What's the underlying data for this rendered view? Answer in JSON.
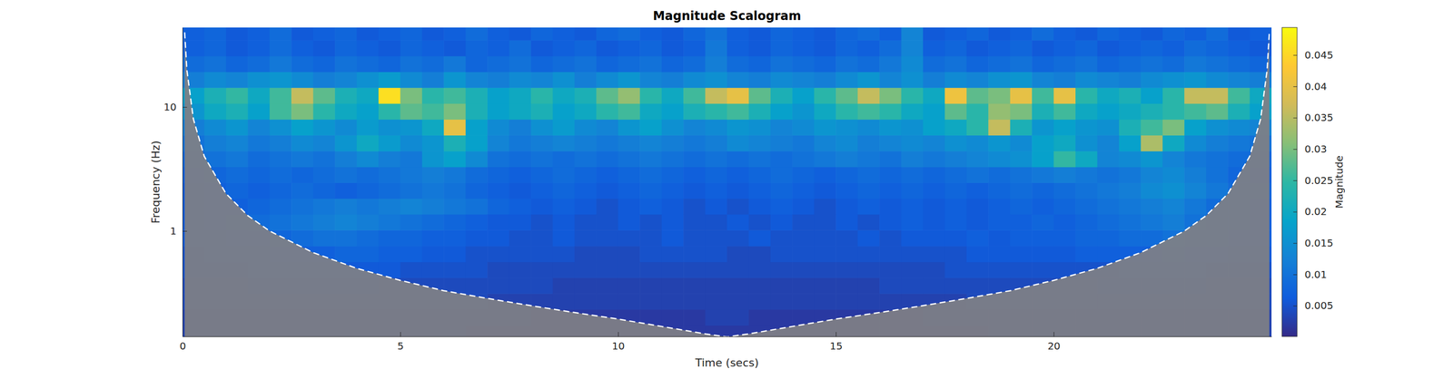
{
  "chart_data": {
    "type": "heatmap",
    "title": "Magnitude Scalogram",
    "xlabel": "Time (secs)",
    "ylabel": "Frequency (Hz)",
    "log": "y",
    "xlim": [
      0,
      25
    ],
    "ylim": [
      0.141,
      43.8
    ],
    "xticks": [
      0,
      5,
      10,
      15,
      20
    ],
    "yticks": [
      1,
      10
    ],
    "x": [
      0.25,
      0.75,
      1.25,
      1.75,
      2.25,
      2.75,
      3.25,
      3.75,
      4.25,
      4.75,
      5.25,
      5.75,
      6.25,
      6.75,
      7.25,
      7.75,
      8.25,
      8.75,
      9.25,
      9.75,
      10.25,
      10.75,
      11.25,
      11.75,
      12.25,
      12.75,
      13.25,
      13.75,
      14.25,
      14.75,
      15.25,
      15.75,
      16.25,
      16.75,
      17.25,
      17.75,
      18.25,
      18.75,
      19.25,
      19.75,
      20.25,
      20.75,
      21.25,
      21.75,
      22.25,
      22.75,
      23.25,
      23.75,
      24.25,
      24.75
    ],
    "y": [
      0.15,
      0.201,
      0.27,
      0.363,
      0.487,
      0.653,
      0.877,
      1.18,
      1.58,
      2.12,
      2.84,
      3.81,
      5.12,
      6.87,
      9.21,
      12.4,
      16.6,
      22.3,
      29.9,
      40.1
    ],
    "z": [
      [
        0.003,
        0.003,
        0.003,
        0.003,
        0.003,
        0.003,
        0.003,
        0.003,
        0.003,
        0.003,
        0.003,
        0.003,
        0.003,
        0.002,
        0.002,
        0.002,
        0.002,
        0.002,
        0.002,
        0.002,
        0.002,
        0.002,
        0.002,
        0.002,
        0.002,
        0.002,
        0.002,
        0.002,
        0.002,
        0.002,
        0.002,
        0.002,
        0.002,
        0.002,
        0.002,
        0.002,
        0.002,
        0.003,
        0.003,
        0.003,
        0.003,
        0.003,
        0.003,
        0.003,
        0.003,
        0.003,
        0.003,
        0.003,
        0.003,
        0.003
      ],
      [
        0.003,
        0.003,
        0.003,
        0.003,
        0.003,
        0.003,
        0.003,
        0.003,
        0.003,
        0.003,
        0.003,
        0.003,
        0.003,
        0.003,
        0.003,
        0.003,
        0.002,
        0.002,
        0.002,
        0.002,
        0.002,
        0.002,
        0.002,
        0.002,
        0.003,
        0.003,
        0.002,
        0.002,
        0.002,
        0.002,
        0.002,
        0.002,
        0.002,
        0.002,
        0.003,
        0.003,
        0.003,
        0.003,
        0.003,
        0.003,
        0.003,
        0.003,
        0.003,
        0.003,
        0.003,
        0.003,
        0.003,
        0.003,
        0.003,
        0.003
      ],
      [
        0.004,
        0.004,
        0.004,
        0.004,
        0.004,
        0.004,
        0.004,
        0.004,
        0.004,
        0.004,
        0.004,
        0.004,
        0.004,
        0.004,
        0.003,
        0.003,
        0.003,
        0.003,
        0.003,
        0.003,
        0.003,
        0.003,
        0.003,
        0.003,
        0.003,
        0.003,
        0.003,
        0.003,
        0.003,
        0.003,
        0.003,
        0.003,
        0.003,
        0.003,
        0.003,
        0.003,
        0.004,
        0.004,
        0.004,
        0.004,
        0.004,
        0.004,
        0.004,
        0.004,
        0.004,
        0.004,
        0.004,
        0.004,
        0.004,
        0.004
      ],
      [
        0.004,
        0.004,
        0.004,
        0.005,
        0.005,
        0.005,
        0.005,
        0.005,
        0.005,
        0.004,
        0.004,
        0.004,
        0.004,
        0.004,
        0.004,
        0.004,
        0.004,
        0.003,
        0.003,
        0.003,
        0.003,
        0.003,
        0.003,
        0.003,
        0.003,
        0.003,
        0.003,
        0.003,
        0.003,
        0.003,
        0.003,
        0.003,
        0.004,
        0.004,
        0.004,
        0.004,
        0.004,
        0.004,
        0.004,
        0.004,
        0.004,
        0.004,
        0.005,
        0.005,
        0.005,
        0.005,
        0.005,
        0.004,
        0.004,
        0.004
      ],
      [
        0.005,
        0.005,
        0.005,
        0.006,
        0.006,
        0.006,
        0.006,
        0.006,
        0.006,
        0.006,
        0.005,
        0.005,
        0.005,
        0.005,
        0.004,
        0.004,
        0.004,
        0.004,
        0.004,
        0.004,
        0.004,
        0.004,
        0.004,
        0.004,
        0.004,
        0.004,
        0.004,
        0.004,
        0.004,
        0.004,
        0.004,
        0.004,
        0.004,
        0.004,
        0.004,
        0.005,
        0.005,
        0.005,
        0.005,
        0.005,
        0.005,
        0.005,
        0.005,
        0.006,
        0.006,
        0.006,
        0.006,
        0.005,
        0.005,
        0.005
      ],
      [
        0.005,
        0.006,
        0.006,
        0.006,
        0.007,
        0.007,
        0.007,
        0.008,
        0.008,
        0.007,
        0.007,
        0.006,
        0.006,
        0.005,
        0.005,
        0.005,
        0.005,
        0.005,
        0.004,
        0.004,
        0.004,
        0.005,
        0.005,
        0.005,
        0.005,
        0.004,
        0.004,
        0.005,
        0.005,
        0.005,
        0.005,
        0.005,
        0.005,
        0.005,
        0.005,
        0.005,
        0.006,
        0.006,
        0.006,
        0.006,
        0.006,
        0.007,
        0.007,
        0.007,
        0.007,
        0.008,
        0.007,
        0.007,
        0.006,
        0.006
      ],
      [
        0.006,
        0.006,
        0.007,
        0.007,
        0.008,
        0.009,
        0.01,
        0.01,
        0.009,
        0.008,
        0.008,
        0.007,
        0.007,
        0.006,
        0.006,
        0.005,
        0.005,
        0.006,
        0.005,
        0.005,
        0.005,
        0.005,
        0.006,
        0.005,
        0.005,
        0.005,
        0.006,
        0.005,
        0.005,
        0.005,
        0.005,
        0.006,
        0.005,
        0.006,
        0.006,
        0.006,
        0.007,
        0.006,
        0.007,
        0.007,
        0.007,
        0.008,
        0.008,
        0.009,
        0.009,
        0.01,
        0.009,
        0.008,
        0.007,
        0.007
      ],
      [
        0.006,
        0.007,
        0.008,
        0.009,
        0.01,
        0.011,
        0.012,
        0.013,
        0.012,
        0.011,
        0.01,
        0.009,
        0.008,
        0.007,
        0.006,
        0.006,
        0.005,
        0.006,
        0.005,
        0.005,
        0.006,
        0.005,
        0.006,
        0.005,
        0.005,
        0.006,
        0.005,
        0.006,
        0.005,
        0.005,
        0.006,
        0.005,
        0.006,
        0.007,
        0.006,
        0.007,
        0.006,
        0.007,
        0.007,
        0.008,
        0.007,
        0.008,
        0.009,
        0.01,
        0.011,
        0.012,
        0.01,
        0.009,
        0.008,
        0.007
      ],
      [
        0.006,
        0.007,
        0.007,
        0.008,
        0.009,
        0.01,
        0.011,
        0.012,
        0.011,
        0.012,
        0.013,
        0.012,
        0.011,
        0.01,
        0.008,
        0.007,
        0.006,
        0.007,
        0.006,
        0.005,
        0.006,
        0.007,
        0.006,
        0.005,
        0.006,
        0.005,
        0.006,
        0.007,
        0.006,
        0.005,
        0.006,
        0.007,
        0.006,
        0.007,
        0.006,
        0.007,
        0.006,
        0.007,
        0.008,
        0.007,
        0.008,
        0.009,
        0.01,
        0.011,
        0.012,
        0.013,
        0.011,
        0.009,
        0.008,
        0.007
      ],
      [
        0.006,
        0.007,
        0.008,
        0.007,
        0.008,
        0.009,
        0.008,
        0.007,
        0.008,
        0.009,
        0.01,
        0.011,
        0.01,
        0.008,
        0.007,
        0.006,
        0.007,
        0.008,
        0.007,
        0.006,
        0.007,
        0.008,
        0.007,
        0.006,
        0.007,
        0.006,
        0.007,
        0.008,
        0.007,
        0.006,
        0.007,
        0.008,
        0.007,
        0.008,
        0.007,
        0.008,
        0.007,
        0.008,
        0.009,
        0.008,
        0.009,
        0.01,
        0.011,
        0.012,
        0.014,
        0.015,
        0.013,
        0.011,
        0.009,
        0.008
      ],
      [
        0.007,
        0.008,
        0.009,
        0.008,
        0.009,
        0.008,
        0.009,
        0.01,
        0.009,
        0.01,
        0.011,
        0.012,
        0.011,
        0.009,
        0.008,
        0.007,
        0.008,
        0.009,
        0.008,
        0.007,
        0.008,
        0.009,
        0.008,
        0.007,
        0.008,
        0.007,
        0.008,
        0.009,
        0.008,
        0.007,
        0.008,
        0.009,
        0.008,
        0.009,
        0.008,
        0.009,
        0.01,
        0.009,
        0.01,
        0.011,
        0.012,
        0.011,
        0.01,
        0.011,
        0.013,
        0.014,
        0.012,
        0.01,
        0.008,
        0.007
      ],
      [
        0.008,
        0.01,
        0.011,
        0.009,
        0.01,
        0.011,
        0.01,
        0.012,
        0.014,
        0.012,
        0.011,
        0.016,
        0.018,
        0.014,
        0.01,
        0.009,
        0.01,
        0.009,
        0.01,
        0.009,
        0.01,
        0.011,
        0.01,
        0.009,
        0.01,
        0.009,
        0.01,
        0.009,
        0.01,
        0.011,
        0.012,
        0.011,
        0.01,
        0.012,
        0.011,
        0.012,
        0.013,
        0.014,
        0.015,
        0.018,
        0.025,
        0.02,
        0.013,
        0.014,
        0.016,
        0.013,
        0.011,
        0.01,
        0.009,
        0.008
      ],
      [
        0.01,
        0.012,
        0.013,
        0.011,
        0.012,
        0.014,
        0.013,
        0.016,
        0.02,
        0.017,
        0.014,
        0.016,
        0.022,
        0.018,
        0.013,
        0.011,
        0.012,
        0.013,
        0.012,
        0.011,
        0.012,
        0.013,
        0.012,
        0.011,
        0.012,
        0.014,
        0.013,
        0.012,
        0.011,
        0.013,
        0.014,
        0.012,
        0.013,
        0.014,
        0.013,
        0.015,
        0.014,
        0.016,
        0.014,
        0.018,
        0.02,
        0.015,
        0.013,
        0.018,
        0.034,
        0.02,
        0.014,
        0.012,
        0.011,
        0.01
      ],
      [
        0.012,
        0.014,
        0.016,
        0.013,
        0.015,
        0.018,
        0.016,
        0.014,
        0.017,
        0.015,
        0.016,
        0.02,
        0.04,
        0.018,
        0.014,
        0.012,
        0.015,
        0.017,
        0.014,
        0.013,
        0.016,
        0.018,
        0.015,
        0.013,
        0.014,
        0.016,
        0.015,
        0.013,
        0.014,
        0.016,
        0.015,
        0.014,
        0.016,
        0.015,
        0.018,
        0.02,
        0.024,
        0.036,
        0.022,
        0.016,
        0.018,
        0.016,
        0.015,
        0.022,
        0.026,
        0.03,
        0.018,
        0.015,
        0.014,
        0.013
      ],
      [
        0.016,
        0.02,
        0.022,
        0.018,
        0.026,
        0.03,
        0.024,
        0.02,
        0.018,
        0.024,
        0.028,
        0.026,
        0.03,
        0.022,
        0.018,
        0.02,
        0.022,
        0.018,
        0.02,
        0.024,
        0.026,
        0.02,
        0.018,
        0.022,
        0.024,
        0.026,
        0.022,
        0.018,
        0.016,
        0.02,
        0.024,
        0.026,
        0.024,
        0.02,
        0.018,
        0.028,
        0.024,
        0.032,
        0.03,
        0.022,
        0.026,
        0.02,
        0.018,
        0.02,
        0.022,
        0.024,
        0.026,
        0.028,
        0.022,
        0.018
      ],
      [
        0.018,
        0.022,
        0.025,
        0.02,
        0.026,
        0.036,
        0.028,
        0.022,
        0.02,
        0.046,
        0.03,
        0.024,
        0.026,
        0.022,
        0.018,
        0.02,
        0.024,
        0.02,
        0.022,
        0.028,
        0.032,
        0.024,
        0.02,
        0.026,
        0.036,
        0.04,
        0.028,
        0.022,
        0.018,
        0.024,
        0.028,
        0.036,
        0.03,
        0.024,
        0.02,
        0.041,
        0.028,
        0.03,
        0.04,
        0.026,
        0.04,
        0.024,
        0.02,
        0.022,
        0.018,
        0.024,
        0.036,
        0.036,
        0.026,
        0.02
      ],
      [
        0.012,
        0.014,
        0.013,
        0.015,
        0.016,
        0.014,
        0.012,
        0.013,
        0.015,
        0.017,
        0.014,
        0.012,
        0.016,
        0.013,
        0.012,
        0.014,
        0.013,
        0.015,
        0.012,
        0.014,
        0.016,
        0.013,
        0.012,
        0.014,
        0.015,
        0.013,
        0.012,
        0.014,
        0.013,
        0.012,
        0.014,
        0.016,
        0.013,
        0.015,
        0.012,
        0.014,
        0.013,
        0.015,
        0.016,
        0.013,
        0.012,
        0.014,
        0.013,
        0.012,
        0.014,
        0.015,
        0.016,
        0.014,
        0.013,
        0.012
      ],
      [
        0.009,
        0.01,
        0.008,
        0.009,
        0.011,
        0.009,
        0.008,
        0.01,
        0.009,
        0.008,
        0.01,
        0.009,
        0.011,
        0.008,
        0.009,
        0.01,
        0.008,
        0.009,
        0.01,
        0.008,
        0.009,
        0.01,
        0.008,
        0.009,
        0.012,
        0.009,
        0.008,
        0.01,
        0.009,
        0.008,
        0.01,
        0.009,
        0.011,
        0.014,
        0.009,
        0.01,
        0.008,
        0.009,
        0.01,
        0.008,
        0.009,
        0.01,
        0.008,
        0.009,
        0.01,
        0.009,
        0.011,
        0.01,
        0.009,
        0.008
      ],
      [
        0.007,
        0.008,
        0.006,
        0.007,
        0.009,
        0.007,
        0.006,
        0.008,
        0.007,
        0.006,
        0.008,
        0.007,
        0.006,
        0.008,
        0.007,
        0.009,
        0.006,
        0.007,
        0.008,
        0.006,
        0.007,
        0.008,
        0.006,
        0.007,
        0.011,
        0.007,
        0.006,
        0.008,
        0.007,
        0.006,
        0.008,
        0.007,
        0.009,
        0.013,
        0.007,
        0.008,
        0.006,
        0.007,
        0.008,
        0.006,
        0.007,
        0.008,
        0.006,
        0.007,
        0.008,
        0.007,
        0.009,
        0.008,
        0.007,
        0.006
      ],
      [
        0.007,
        0.008,
        0.006,
        0.007,
        0.009,
        0.006,
        0.007,
        0.008,
        0.006,
        0.007,
        0.008,
        0.006,
        0.007,
        0.009,
        0.007,
        0.006,
        0.008,
        0.007,
        0.006,
        0.008,
        0.009,
        0.007,
        0.006,
        0.008,
        0.01,
        0.007,
        0.006,
        0.008,
        0.007,
        0.006,
        0.008,
        0.009,
        0.007,
        0.013,
        0.006,
        0.007,
        0.008,
        0.006,
        0.007,
        0.009,
        0.007,
        0.006,
        0.008,
        0.007,
        0.006,
        0.008,
        0.007,
        0.009,
        0.006,
        0.007
      ]
    ],
    "colorbar": {
      "label": "Magnitude",
      "range": [
        0.0001,
        0.0494
      ],
      "ticks": [
        0.005,
        0.01,
        0.015,
        0.02,
        0.025,
        0.03,
        0.035,
        0.04,
        0.045
      ]
    },
    "coi": {
      "x": [
        0.05,
        0.1,
        0.25,
        0.5,
        1,
        1.5,
        2,
        3,
        4,
        5,
        6,
        7,
        8,
        9,
        10,
        11,
        12,
        12.5,
        13,
        14,
        15,
        16,
        17,
        18,
        19,
        20,
        21,
        22,
        23,
        23.5,
        24,
        24.5,
        24.75,
        24.9,
        24.95
      ],
      "y": [
        40,
        20,
        8,
        4,
        2,
        1.33,
        1,
        0.67,
        0.5,
        0.4,
        0.33,
        0.286,
        0.25,
        0.22,
        0.195,
        0.17,
        0.148,
        0.14,
        0.148,
        0.17,
        0.195,
        0.22,
        0.25,
        0.286,
        0.33,
        0.4,
        0.5,
        0.67,
        1,
        1.33,
        2,
        4,
        8,
        20,
        40
      ]
    }
  }
}
